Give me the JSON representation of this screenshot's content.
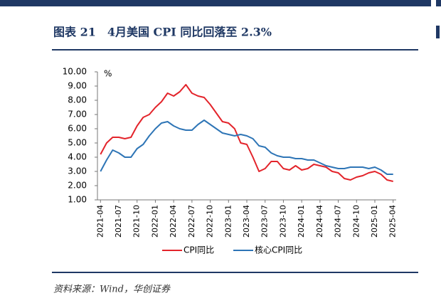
{
  "chart_data": {
    "type": "line",
    "title": "图表 21　4月美国 CPI 同比回落至 2.3%",
    "source": "资料来源：Wind，华创证券",
    "y_label": "%",
    "categories": [
      "2021-04",
      null,
      null,
      "2021-07",
      null,
      null,
      "2021-10",
      null,
      null,
      "2022-01",
      null,
      null,
      "2022-04",
      null,
      null,
      "2022-07",
      null,
      null,
      "2022-10",
      null,
      null,
      "2023-01",
      null,
      null,
      "2023-04",
      null,
      null,
      "2023-07",
      null,
      null,
      "2023-10",
      null,
      null,
      "2024-01",
      null,
      null,
      "2024-04",
      null,
      null,
      "2024-07",
      null,
      null,
      "2024-10",
      null,
      null,
      "2025-01",
      null,
      null,
      "2025-04"
    ],
    "series": [
      {
        "name": "CPI同比",
        "color": "#e3242b",
        "values": [
          4.2,
          5.0,
          5.4,
          5.4,
          5.3,
          5.4,
          6.2,
          6.8,
          7.0,
          7.5,
          7.9,
          8.5,
          8.3,
          8.6,
          9.1,
          8.5,
          8.3,
          8.2,
          7.7,
          7.1,
          6.5,
          6.4,
          6.0,
          5.0,
          4.9,
          4.0,
          3.0,
          3.2,
          3.7,
          3.7,
          3.2,
          3.1,
          3.4,
          3.1,
          3.2,
          3.5,
          3.4,
          3.3,
          3.0,
          2.9,
          2.5,
          2.4,
          2.6,
          2.7,
          2.9,
          3.0,
          2.8,
          2.4,
          2.3
        ]
      },
      {
        "name": "核心CPI同比",
        "color": "#2e75b6",
        "values": [
          3.0,
          3.8,
          4.5,
          4.3,
          4.0,
          4.0,
          4.6,
          4.9,
          5.5,
          6.0,
          6.4,
          6.5,
          6.2,
          6.0,
          5.9,
          5.9,
          6.3,
          6.6,
          6.3,
          6.0,
          5.7,
          5.6,
          5.5,
          5.6,
          5.5,
          5.3,
          4.8,
          4.7,
          4.3,
          4.1,
          4.0,
          4.0,
          3.9,
          3.9,
          3.8,
          3.8,
          3.6,
          3.4,
          3.3,
          3.2,
          3.2,
          3.3,
          3.3,
          3.3,
          3.2,
          3.3,
          3.1,
          2.8,
          2.8
        ]
      }
    ],
    "ylim": [
      1,
      10
    ],
    "yticks": [
      {
        "value": 1,
        "label": "1.00"
      },
      {
        "value": 2,
        "label": "2.00"
      },
      {
        "value": 3,
        "label": "3.00"
      },
      {
        "value": 4,
        "label": "4.00"
      },
      {
        "value": 5,
        "label": "5.00"
      },
      {
        "value": 6,
        "label": "6.00"
      },
      {
        "value": 7,
        "label": "7.00"
      },
      {
        "value": 8,
        "label": "8.00"
      },
      {
        "value": 9,
        "label": "9.00"
      },
      {
        "value": 10,
        "label": "10.00"
      }
    ],
    "grid": false,
    "legend": "bottom"
  }
}
